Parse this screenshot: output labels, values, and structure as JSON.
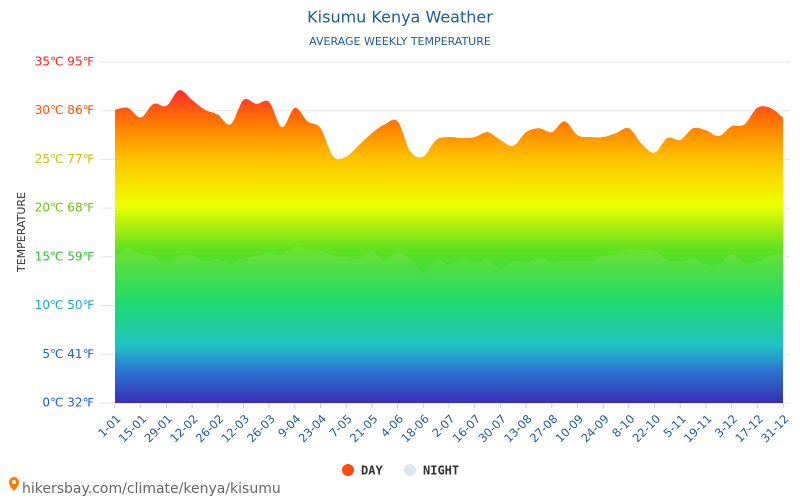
{
  "chart_data": {
    "type": "area",
    "title": "Kisumu Kenya Weather",
    "subtitle": "AVERAGE WEEKLY TEMPERATURE",
    "y_axis_label": "TEMPERATURE",
    "source": "hikersbay.com/climate/kenya/kisumu",
    "categories": [
      "1-01",
      null,
      "15-01",
      null,
      "29-01",
      null,
      "12-02",
      null,
      "26-02",
      null,
      "12-03",
      null,
      "26-03",
      null,
      "9-04",
      null,
      "23-04",
      null,
      "7-05",
      null,
      "21-05",
      null,
      "4-06",
      null,
      "18-06",
      null,
      "2-07",
      null,
      "16-07",
      null,
      "30-07",
      null,
      "13-08",
      null,
      "27-08",
      null,
      "10-09",
      null,
      "24-09",
      null,
      "8-10",
      null,
      "22-10",
      null,
      "5-11",
      null,
      "19-11",
      null,
      "3-12",
      null,
      "17-12",
      null,
      "31-12"
    ],
    "series": [
      {
        "name": "DAY",
        "color": "#ff4a12",
        "values": [
          30.1,
          30.3,
          29.3,
          30.7,
          30.5,
          32.1,
          31.1,
          30.1,
          29.6,
          28.6,
          31.1,
          30.7,
          30.9,
          28.3,
          30.3,
          28.9,
          28.2,
          25.3,
          25.3,
          26.5,
          27.7,
          28.6,
          28.9,
          25.8,
          25.3,
          27.0,
          27.3,
          27.2,
          27.3,
          27.8,
          27.0,
          26.4,
          27.8,
          28.2,
          27.8,
          28.9,
          27.5,
          27.3,
          27.3,
          27.7,
          28.2,
          26.6,
          25.7,
          27.2,
          27.0,
          28.2,
          28.0,
          27.4,
          28.4,
          28.6,
          30.3,
          30.3,
          29.3
        ]
      },
      {
        "name": "NIGHT",
        "color": "#dfe6ec",
        "values": [
          15.2,
          15.9,
          15.3,
          15.1,
          14.4,
          15.1,
          15.1,
          14.6,
          14.8,
          14.3,
          14.9,
          15.1,
          15.4,
          15.2,
          16.0,
          15.8,
          15.6,
          15.1,
          15.0,
          14.8,
          15.5,
          14.7,
          15.5,
          14.8,
          13.4,
          14.7,
          14.2,
          14.8,
          14.4,
          14.8,
          13.8,
          14.5,
          14.4,
          14.9,
          14.4,
          14.6,
          14.6,
          14.6,
          15.1,
          15.2,
          15.8,
          15.7,
          15.6,
          14.7,
          14.5,
          14.8,
          14.2,
          14.2,
          15.3,
          14.4,
          14.5,
          15.1,
          15.3
        ]
      }
    ],
    "ylim": [
      0,
      35
    ],
    "yticks": [
      {
        "value": 0,
        "label": "0℃ 32℉"
      },
      {
        "value": 5,
        "label": "5℃ 41℉"
      },
      {
        "value": 10,
        "label": "10℃ 50℉"
      },
      {
        "value": 15,
        "label": "15℃ 59℉"
      },
      {
        "value": 20,
        "label": "20℃ 68℉"
      },
      {
        "value": 25,
        "label": "25℃ 77℉"
      },
      {
        "value": 30,
        "label": "30℃ 86℉"
      },
      {
        "value": 35,
        "label": "35℃ 95℉"
      }
    ],
    "grid": true
  }
}
